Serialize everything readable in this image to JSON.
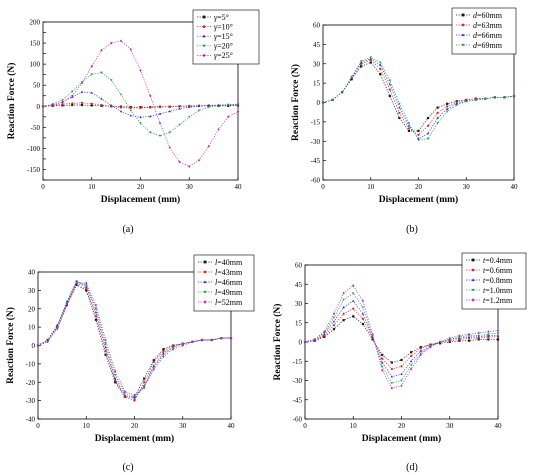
{
  "figure": {
    "panels": [
      "(a)",
      "(b)",
      "(c)",
      "(d)"
    ]
  },
  "chart_data": [
    {
      "type": "line",
      "panel_label": "(a)",
      "xlabel": "Displacement (mm)",
      "ylabel": "Reaction Force (N)",
      "xlim": [
        0,
        40
      ],
      "ylim": [
        -175,
        200
      ],
      "xticks": [
        0,
        10,
        20,
        30,
        40
      ],
      "yticks": [
        -175,
        -150,
        -125,
        -100,
        -75,
        -50,
        -25,
        0,
        25,
        50,
        75,
        100,
        125,
        150,
        175,
        200
      ],
      "legend_position": "top-right",
      "x": [
        0,
        2,
        4,
        6,
        8,
        10,
        12,
        14,
        16,
        18,
        20,
        22,
        24,
        26,
        28,
        30,
        32,
        34,
        36,
        38,
        40
      ],
      "series": [
        {
          "name": "γ=5°",
          "legend_label": "=5°",
          "color": "#1a1a1a",
          "marker": "square",
          "values": [
            0,
            1,
            2,
            3,
            3,
            2,
            1,
            0,
            -1,
            -2,
            -2,
            -2,
            -1,
            -1,
            0,
            0,
            1,
            1,
            1,
            1,
            2
          ]
        },
        {
          "name": "γ=10°",
          "legend_label": "=10°",
          "color": "#e8222a",
          "marker": "circle",
          "values": [
            0,
            2,
            5,
            7,
            8,
            6,
            3,
            0,
            -3,
            -4,
            -4,
            -3,
            -2,
            -1,
            0,
            1,
            1,
            2,
            2,
            3,
            3
          ]
        },
        {
          "name": "γ=15°",
          "legend_label": "=15°",
          "color": "#2a2ae8",
          "marker": "triangle",
          "values": [
            0,
            3,
            10,
            22,
            34,
            32,
            18,
            2,
            -12,
            -22,
            -26,
            -24,
            -18,
            -12,
            -6,
            -2,
            0,
            2,
            3,
            3,
            4
          ]
        },
        {
          "name": "γ=20°",
          "legend_label": "=20°",
          "color": "#1a9a50",
          "marker": "triangle-down",
          "values": [
            0,
            5,
            15,
            35,
            58,
            76,
            80,
            62,
            28,
            -10,
            -40,
            -62,
            -70,
            -62,
            -44,
            -25,
            -10,
            -2,
            2,
            4,
            5
          ]
        },
        {
          "name": "γ=25°",
          "legend_label": "=25°",
          "color": "#b52bb5",
          "marker": "diamond",
          "values": [
            0,
            3,
            10,
            25,
            55,
            95,
            133,
            150,
            155,
            135,
            85,
            25,
            -40,
            -98,
            -132,
            -143,
            -128,
            -95,
            -55,
            -25,
            -12
          ]
        }
      ]
    },
    {
      "type": "line",
      "panel_label": "(b)",
      "xlabel": "Displacement (mm)",
      "ylabel": "Reaction Force (N)",
      "xlim": [
        0,
        40
      ],
      "ylim": [
        -60,
        60
      ],
      "xticks": [
        0,
        10,
        20,
        30,
        40
      ],
      "yticks": [
        -60,
        -45,
        -30,
        -15,
        0,
        15,
        30,
        45,
        60
      ],
      "legend_position": "top-right",
      "x": [
        0,
        2,
        4,
        6,
        8,
        10,
        12,
        14,
        16,
        18,
        20,
        22,
        24,
        26,
        28,
        30,
        32,
        34,
        36,
        38,
        40
      ],
      "series": [
        {
          "name": "d=60mm",
          "legend_label": "=60mm",
          "color": "#1a1a1a",
          "marker": "square",
          "values": [
            0,
            2,
            8,
            18,
            28,
            31,
            22,
            5,
            -12,
            -22,
            -22,
            -12,
            -4,
            -1,
            1,
            2,
            3,
            3,
            4,
            4,
            5
          ]
        },
        {
          "name": "d=63mm",
          "legend_label": "=63mm",
          "color": "#e8222a",
          "marker": "circle",
          "values": [
            0,
            2,
            8,
            19,
            30,
            33,
            26,
            10,
            -8,
            -20,
            -25,
            -18,
            -8,
            -3,
            0,
            2,
            3,
            3,
            4,
            4,
            5
          ]
        },
        {
          "name": "d=66mm",
          "legend_label": "=66mm",
          "color": "#2a2ae8",
          "marker": "triangle",
          "values": [
            0,
            2,
            8,
            19,
            31,
            34,
            29,
            14,
            -4,
            -18,
            -28,
            -24,
            -12,
            -5,
            -1,
            1,
            2,
            3,
            4,
            4,
            5
          ]
        },
        {
          "name": "d=69mm",
          "legend_label": "=69mm",
          "color": "#1a9a50",
          "marker": "triangle-down",
          "values": [
            0,
            2,
            8,
            20,
            32,
            35,
            31,
            17,
            -1,
            -16,
            -29,
            -28,
            -16,
            -7,
            -2,
            1,
            2,
            3,
            4,
            4,
            5
          ]
        }
      ]
    },
    {
      "type": "line",
      "panel_label": "(c)",
      "xlabel": "Displacement (mm)",
      "ylabel": "Reaction Force (N)",
      "xlim": [
        0,
        40
      ],
      "ylim": [
        -40,
        40
      ],
      "xticks": [
        0,
        10,
        20,
        30,
        40
      ],
      "yticks": [
        -40,
        -30,
        -20,
        -10,
        0,
        10,
        20,
        30,
        40
      ],
      "legend_position": "top-right",
      "x": [
        0,
        2,
        4,
        6,
        8,
        10,
        12,
        14,
        16,
        18,
        20,
        22,
        24,
        26,
        28,
        30,
        32,
        34,
        36,
        38,
        40
      ],
      "series": [
        {
          "name": "l=40mm",
          "legend_label": "=40mm",
          "color": "#1a1a1a",
          "marker": "square",
          "values": [
            0,
            3,
            10,
            22,
            33,
            30,
            14,
            -5,
            -20,
            -28,
            -28,
            -18,
            -8,
            -2,
            0,
            1,
            2,
            3,
            3,
            4,
            4
          ]
        },
        {
          "name": "l=43mm",
          "legend_label": "=43mm",
          "color": "#e8222a",
          "marker": "circle",
          "values": [
            0,
            3,
            11,
            23,
            34,
            31,
            16,
            -3,
            -19,
            -28,
            -30,
            -20,
            -9,
            -3,
            0,
            1,
            2,
            3,
            3,
            4,
            4
          ]
        },
        {
          "name": "l=46mm",
          "legend_label": "=46mm",
          "color": "#2a2ae8",
          "marker": "triangle",
          "values": [
            0,
            3,
            11,
            24,
            35,
            32,
            18,
            -1,
            -18,
            -27,
            -29,
            -22,
            -11,
            -4,
            -1,
            1,
            2,
            3,
            3,
            4,
            4
          ]
        },
        {
          "name": "l=49mm",
          "legend_label": "=49mm",
          "color": "#1a9a50",
          "marker": "triangle-down",
          "values": [
            0,
            2,
            10,
            23,
            35,
            33,
            20,
            1,
            -16,
            -26,
            -28,
            -22,
            -12,
            -5,
            -1,
            1,
            2,
            3,
            3,
            4,
            4
          ]
        },
        {
          "name": "l=52mm",
          "legend_label": "=52mm",
          "color": "#b52bb5",
          "marker": "diamond",
          "values": [
            0,
            2,
            9,
            22,
            34,
            34,
            22,
            3,
            -14,
            -25,
            -27,
            -23,
            -13,
            -6,
            -2,
            0,
            2,
            3,
            3,
            4,
            4
          ]
        }
      ]
    },
    {
      "type": "line",
      "panel_label": "(d)",
      "xlabel": "Displacement (mm)",
      "ylabel": "Reaction Force (N)",
      "xlim": [
        0,
        40
      ],
      "ylim": [
        -60,
        60
      ],
      "xticks": [
        0,
        10,
        20,
        30,
        40
      ],
      "yticks": [
        -60,
        -45,
        -30,
        -15,
        0,
        15,
        30,
        45,
        60
      ],
      "legend_position": "top-right",
      "x": [
        0,
        2,
        4,
        6,
        8,
        10,
        12,
        14,
        16,
        18,
        20,
        22,
        24,
        26,
        28,
        30,
        32,
        34,
        36,
        38,
        40
      ],
      "series": [
        {
          "name": "t=0.4mm",
          "legend_label": "=0.4mm",
          "color": "#1a1a1a",
          "marker": "square",
          "values": [
            0,
            1,
            4,
            10,
            17,
            20,
            14,
            2,
            -10,
            -16,
            -14,
            -8,
            -4,
            -2,
            -1,
            0,
            1,
            1,
            2,
            2,
            2
          ]
        },
        {
          "name": "t=0.6mm",
          "legend_label": "=0.6mm",
          "color": "#e8222a",
          "marker": "circle",
          "values": [
            0,
            1,
            5,
            13,
            22,
            26,
            18,
            3,
            -13,
            -21,
            -19,
            -11,
            -5,
            -2,
            0,
            1,
            2,
            3,
            3,
            4,
            4
          ]
        },
        {
          "name": "t=0.8mm",
          "legend_label": "=0.8mm",
          "color": "#2a2ae8",
          "marker": "triangle",
          "values": [
            0,
            1,
            6,
            16,
            27,
            32,
            22,
            4,
            -16,
            -27,
            -25,
            -15,
            -7,
            -3,
            0,
            2,
            3,
            4,
            4,
            5,
            5
          ]
        },
        {
          "name": "t=1.0mm",
          "legend_label": "=1.0mm",
          "color": "#1a9a50",
          "marker": "triangle-down",
          "values": [
            0,
            2,
            7,
            19,
            33,
            38,
            27,
            5,
            -19,
            -32,
            -30,
            -18,
            -9,
            -3,
            0,
            2,
            4,
            5,
            5,
            6,
            7
          ]
        },
        {
          "name": "t=1.2mm",
          "legend_label": "=1.2mm",
          "color": "#b52bb5",
          "marker": "diamond",
          "values": [
            0,
            2,
            8,
            22,
            38,
            44,
            32,
            6,
            -22,
            -36,
            -34,
            -21,
            -10,
            -4,
            0,
            3,
            5,
            6,
            7,
            8,
            9
          ]
        }
      ]
    }
  ]
}
